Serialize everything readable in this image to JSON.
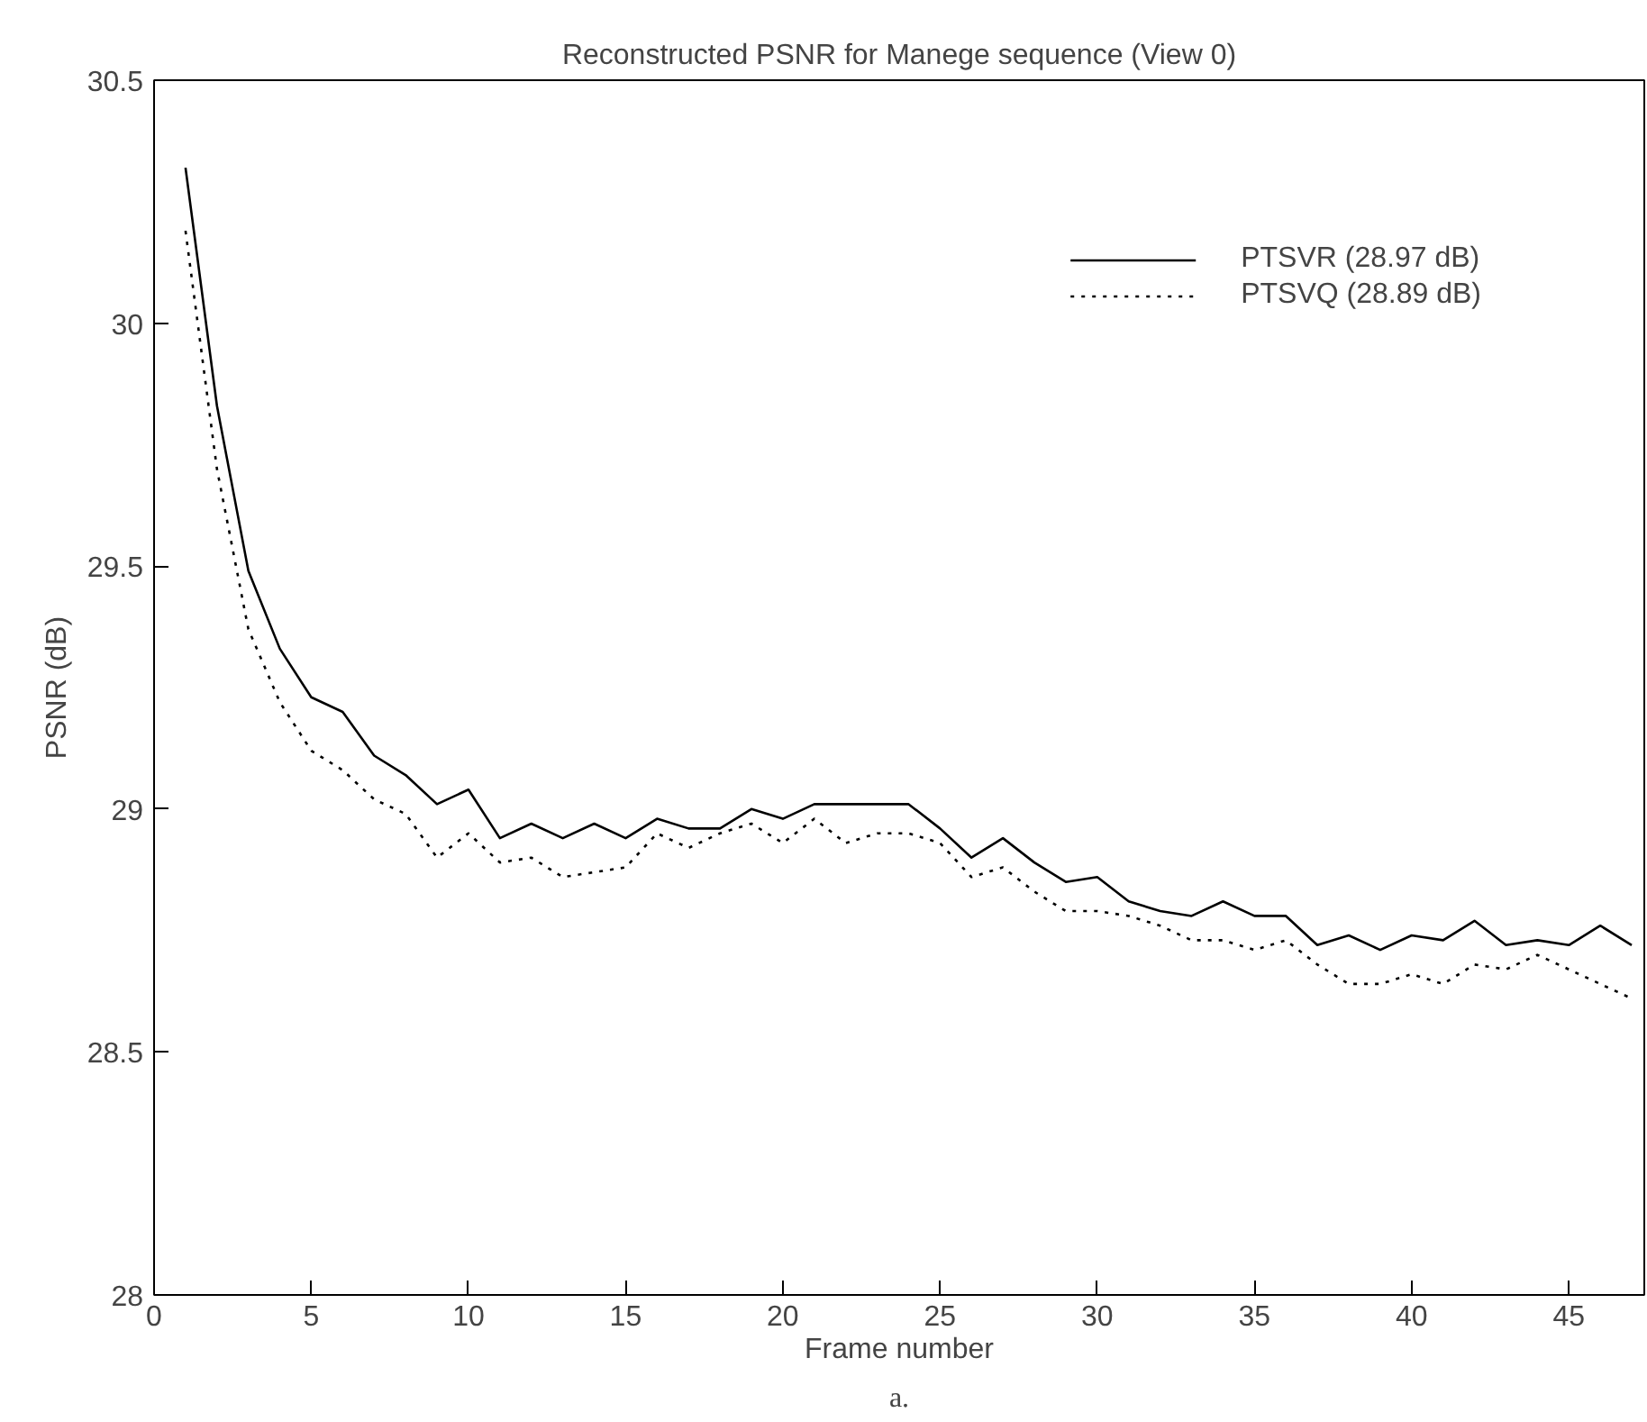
{
  "chart_data": {
    "type": "line",
    "title": "Reconstructed PSNR for Manege sequence (View 0)",
    "xlabel": "Frame number",
    "ylabel": "PSNR (dB)",
    "annotations": [
      "a."
    ],
    "x": [
      1,
      2,
      3,
      4,
      5,
      6,
      7,
      8,
      9,
      10,
      11,
      12,
      13,
      14,
      15,
      16,
      17,
      18,
      19,
      20,
      21,
      22,
      23,
      24,
      25,
      26,
      27,
      28,
      29,
      30,
      31,
      32,
      33,
      34,
      35,
      36,
      37,
      38,
      39,
      40,
      41,
      42,
      43,
      44,
      45,
      46,
      47
    ],
    "series": [
      {
        "name": "PTSVR (28.97 dB)",
        "color": "#000000",
        "line_style": "solid",
        "values": [
          30.32,
          29.83,
          29.49,
          29.33,
          29.23,
          29.2,
          29.11,
          29.07,
          29.01,
          29.04,
          28.94,
          28.97,
          28.94,
          28.97,
          28.94,
          28.98,
          28.96,
          28.96,
          29.0,
          28.98,
          29.01,
          29.01,
          29.01,
          29.01,
          28.96,
          28.9,
          28.94,
          28.89,
          28.85,
          28.86,
          28.81,
          28.79,
          28.78,
          28.81,
          28.78,
          28.78,
          28.72,
          28.74,
          28.71,
          28.74,
          28.73,
          28.77,
          28.72,
          28.73,
          28.72,
          28.76,
          28.72
        ]
      },
      {
        "name": "PTSVQ (28.89 dB)",
        "color": "#000000",
        "line_style": "dotted",
        "values": [
          30.19,
          29.7,
          29.37,
          29.22,
          29.12,
          29.08,
          29.02,
          28.99,
          28.9,
          28.95,
          28.89,
          28.9,
          28.86,
          28.87,
          28.88,
          28.95,
          28.92,
          28.95,
          28.97,
          28.93,
          28.98,
          28.93,
          28.95,
          28.95,
          28.93,
          28.86,
          28.88,
          28.83,
          28.79,
          28.79,
          28.78,
          28.76,
          28.73,
          28.73,
          28.71,
          28.73,
          28.68,
          28.64,
          28.64,
          28.66,
          28.64,
          28.68,
          28.67,
          28.7,
          28.67,
          28.64,
          28.61
        ]
      }
    ],
    "xlim": [
      0,
      47.4
    ],
    "ylim": [
      28,
      30.5
    ],
    "xticks": [
      0,
      5,
      10,
      15,
      20,
      25,
      30,
      35,
      40,
      45
    ],
    "yticks": [
      28,
      28.5,
      29,
      29.5,
      30,
      30.5
    ],
    "legend": "top right",
    "grid": false,
    "marker": "none"
  }
}
